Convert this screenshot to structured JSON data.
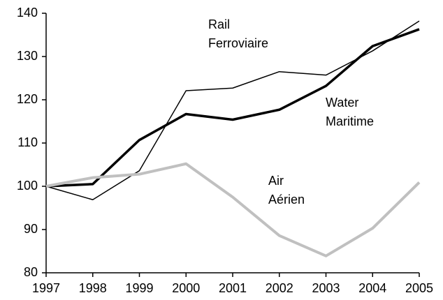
{
  "chart_data": {
    "type": "line",
    "x": [
      1997,
      1998,
      1999,
      2000,
      2001,
      2002,
      2003,
      2004,
      2005
    ],
    "xlim": [
      1997,
      2005
    ],
    "xticks": [
      1997,
      1998,
      1999,
      2000,
      2001,
      2002,
      2003,
      2004,
      2005
    ],
    "ylim": [
      80,
      140
    ],
    "yticks": [
      80,
      90,
      100,
      110,
      120,
      130,
      140
    ],
    "series": [
      {
        "name": [
          "Rail",
          "Ferroviaire"
        ],
        "color": "#000000",
        "line_width": 1.5,
        "values": [
          100,
          96.9,
          103.6,
          122.1,
          122.7,
          126.5,
          125.7,
          131.3,
          138.2
        ]
      },
      {
        "name": [
          "Water",
          "Maritime"
        ],
        "color": "#000000",
        "line_width": 3.5,
        "values": [
          100,
          100.5,
          110.7,
          116.7,
          115.4,
          117.7,
          123.2,
          132.4,
          136.3
        ]
      },
      {
        "name": [
          "Air",
          "Aérien"
        ],
        "color": "#c0c0c0",
        "line_width": 4,
        "values": [
          100,
          102,
          102.8,
          105.2,
          97.5,
          88.6,
          83.9,
          90.3,
          100.9
        ]
      }
    ]
  }
}
